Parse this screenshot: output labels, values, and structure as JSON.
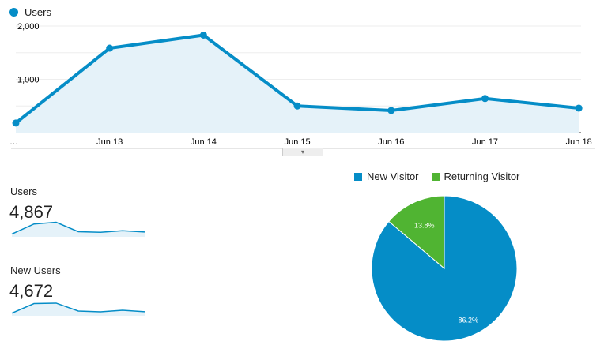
{
  "chart_data": [
    {
      "type": "area",
      "series": [
        {
          "name": "Users",
          "values": [
            180,
            1585,
            1830,
            500,
            415,
            640,
            460
          ]
        }
      ],
      "x": [
        "…",
        "Jun 13",
        "Jun 14",
        "Jun 15",
        "Jun 16",
        "Jun 17",
        "Jun 18"
      ],
      "yticks": [
        "1,000",
        "2,000"
      ],
      "ylim": [
        0,
        2000
      ],
      "grid": true,
      "legend": "top-left",
      "color": "#058dc7"
    },
    {
      "type": "pie",
      "slices": [
        {
          "name": "New Visitor",
          "value": 86.2,
          "label": "86.2%",
          "color": "#058dc7"
        },
        {
          "name": "Returning Visitor",
          "value": 13.8,
          "label": "13.8%",
          "color": "#50b432"
        }
      ],
      "legend": "top"
    }
  ],
  "metrics": [
    {
      "label": "Users",
      "value": "4,867",
      "spark": [
        180,
        1585,
        1830,
        500,
        415,
        640,
        460
      ]
    },
    {
      "label": "New Users",
      "value": "4,672",
      "spark": [
        150,
        1500,
        1560,
        450,
        330,
        550,
        350
      ]
    }
  ]
}
